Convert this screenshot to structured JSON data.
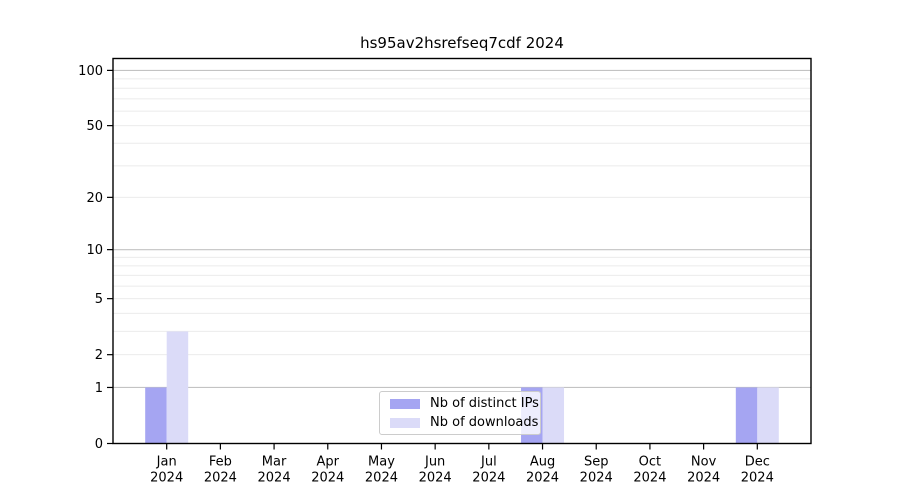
{
  "chart_data": {
    "type": "bar",
    "title": "hs95av2hsrefseq7cdf 2024",
    "categories": [
      "Jan",
      "Feb",
      "Mar",
      "Apr",
      "May",
      "Jun",
      "Jul",
      "Aug",
      "Sep",
      "Oct",
      "Nov",
      "Dec"
    ],
    "year": "2024",
    "series": [
      {
        "name": "Nb of distinct IPs",
        "color": "#a5a5f2",
        "values": [
          1,
          0,
          0,
          0,
          0,
          0,
          0,
          1,
          0,
          0,
          0,
          1
        ]
      },
      {
        "name": "Nb of downloads",
        "color": "#dbdbf8",
        "values": [
          3,
          0,
          0,
          0,
          0,
          0,
          0,
          1,
          0,
          0,
          0,
          1
        ]
      }
    ],
    "yscale": "log1p",
    "ylim": [
      0,
      116
    ],
    "yticks": [
      0,
      1,
      2,
      5,
      10,
      20,
      50,
      100
    ],
    "major_gridlines": [
      1,
      10,
      100
    ],
    "minor_gridlines": [
      2,
      3,
      4,
      5,
      6,
      7,
      8,
      9,
      20,
      30,
      40,
      50,
      60,
      70,
      80,
      90
    ],
    "grid": true,
    "legend_position": "lower center",
    "colors": {
      "major_grid": "#c3c3c3",
      "minor_grid": "#ebebeb",
      "spine": "#000000",
      "text": "#000000"
    }
  }
}
